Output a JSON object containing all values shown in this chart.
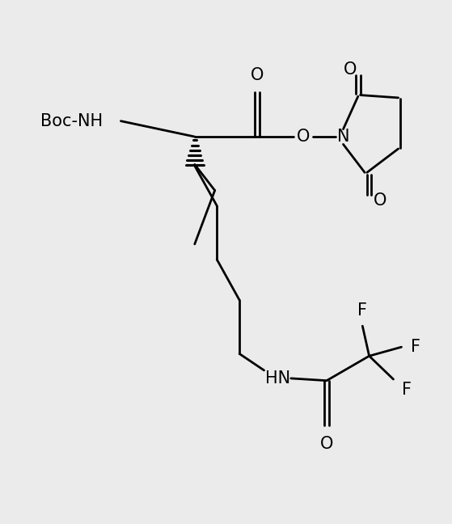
{
  "bg_color": "#ebebeb",
  "line_color": "#000000",
  "line_width": 2.0,
  "font_size": 15,
  "figsize": [
    5.59,
    6.48
  ],
  "dpi": 100,
  "xlim": [
    0,
    10
  ],
  "ylim": [
    0,
    11.6
  ]
}
